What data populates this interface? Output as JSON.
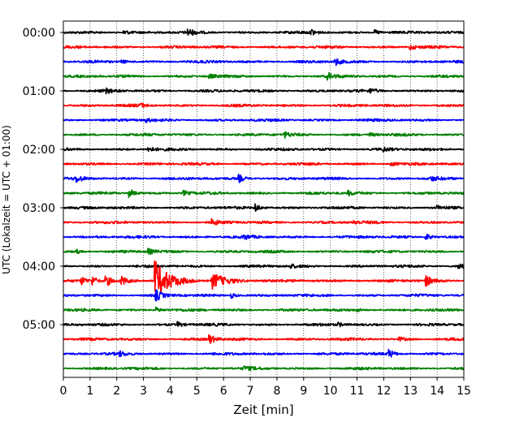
{
  "chart_data": {
    "type": "line",
    "subtype": "helicorder",
    "title": "",
    "xlabel": "Zeit  [min]",
    "ylabel": "UTC (Lokalzeit = UTC + 01:00)",
    "xlim": [
      0,
      15
    ],
    "x_ticks": [
      "0",
      "1",
      "2",
      "3",
      "4",
      "5",
      "6",
      "7",
      "8",
      "9",
      "10",
      "11",
      "12",
      "13",
      "14",
      "15"
    ],
    "y_tick_labels": [
      "00:00",
      "01:00",
      "02:00",
      "03:00",
      "04:00",
      "05:00"
    ],
    "y_tick_trace_index": [
      0,
      4,
      8,
      12,
      16,
      20
    ],
    "grid": "vertical-dotted",
    "trace_interval_min": 15,
    "trace_colors": [
      "#000000",
      "#ff0000",
      "#0000ff",
      "#008000"
    ],
    "traces": [
      {
        "start": "00:00",
        "events": [
          [
            2.3,
            0.5
          ],
          [
            4.7,
            0.6
          ],
          [
            9.3,
            0.6
          ],
          [
            11.7,
            0.45
          ]
        ]
      },
      {
        "start": "00:15",
        "events": [
          [
            13.0,
            0.5
          ]
        ]
      },
      {
        "start": "00:30",
        "events": [
          [
            10.2,
            0.7
          ],
          [
            2.2,
            0.35
          ]
        ]
      },
      {
        "start": "00:45",
        "events": [
          [
            9.9,
            0.6
          ],
          [
            5.5,
            0.35
          ]
        ]
      },
      {
        "start": "01:00",
        "events": [
          [
            1.6,
            0.4
          ],
          [
            11.5,
            0.35
          ]
        ]
      },
      {
        "start": "01:15",
        "events": [
          [
            2.9,
            0.35
          ]
        ]
      },
      {
        "start": "01:30",
        "events": [
          [
            3.1,
            0.35
          ]
        ]
      },
      {
        "start": "01:45",
        "events": [
          [
            8.3,
            0.5
          ],
          [
            11.5,
            0.35
          ]
        ]
      },
      {
        "start": "02:00",
        "events": [
          [
            3.2,
            0.5
          ],
          [
            12.0,
            0.35
          ]
        ]
      },
      {
        "start": "02:15",
        "events": [
          [
            12.3,
            0.35
          ]
        ]
      },
      {
        "start": "02:30",
        "events": [
          [
            0.5,
            0.6
          ],
          [
            6.6,
            0.7
          ],
          [
            13.8,
            0.35
          ]
        ]
      },
      {
        "start": "02:45",
        "events": [
          [
            2.5,
            0.8
          ],
          [
            4.5,
            0.5
          ],
          [
            10.7,
            0.45
          ]
        ]
      },
      {
        "start": "03:00",
        "events": [
          [
            7.2,
            0.7
          ],
          [
            14.0,
            0.35
          ]
        ]
      },
      {
        "start": "03:15",
        "events": [
          [
            5.6,
            0.5
          ],
          [
            10.9,
            0.45
          ]
        ]
      },
      {
        "start": "03:30",
        "events": [
          [
            13.6,
            0.6
          ],
          [
            6.8,
            0.35
          ]
        ]
      },
      {
        "start": "03:45",
        "events": [
          [
            3.2,
            0.5
          ],
          [
            0.5,
            0.35
          ]
        ]
      },
      {
        "start": "04:00",
        "events": [
          [
            14.8,
            0.7
          ],
          [
            8.5,
            0.4
          ]
        ]
      },
      {
        "start": "04:15",
        "events": [
          [
            3.45,
            4.0
          ],
          [
            5.6,
            1.6
          ],
          [
            1.6,
            1.2
          ],
          [
            1.1,
            0.9
          ],
          [
            2.2,
            0.8
          ],
          [
            13.6,
            1.0
          ],
          [
            0.7,
            0.7
          ]
        ]
      },
      {
        "start": "04:30",
        "events": [
          [
            3.5,
            1.0
          ],
          [
            6.3,
            0.5
          ]
        ]
      },
      {
        "start": "04:45",
        "events": [
          [
            3.5,
            0.5
          ],
          [
            11.0,
            0.35
          ]
        ]
      },
      {
        "start": "05:00",
        "events": [
          [
            4.3,
            0.5
          ],
          [
            10.3,
            0.35
          ]
        ]
      },
      {
        "start": "05:15",
        "events": [
          [
            5.5,
            0.8
          ],
          [
            12.6,
            0.35
          ]
        ]
      },
      {
        "start": "05:30",
        "events": [
          [
            12.2,
            0.8
          ],
          [
            2.1,
            0.45
          ]
        ]
      },
      {
        "start": "05:45",
        "events": [
          [
            6.8,
            0.35
          ]
        ]
      }
    ]
  }
}
